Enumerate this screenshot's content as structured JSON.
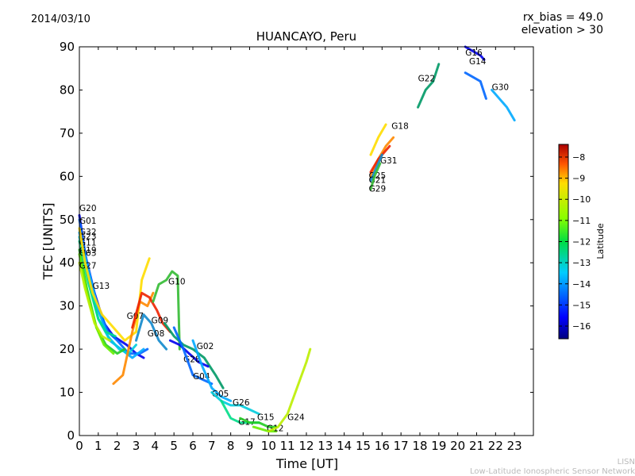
{
  "header": {
    "date": "2014/03/10",
    "rx_bias": "rx_bias = 49.0",
    "elevation": "elevation > 30"
  },
  "chart_data": {
    "type": "scatter",
    "title": "HUANCAYO, Peru",
    "xlabel": "Time [UT]",
    "ylabel": "TEC [UNITS]",
    "xlim": [
      0,
      24
    ],
    "ylim": [
      0,
      90
    ],
    "xticks": [
      "0",
      "1",
      "2",
      "3",
      "4",
      "5",
      "6",
      "7",
      "8",
      "9",
      "10",
      "11",
      "12",
      "13",
      "14",
      "15",
      "16",
      "17",
      "18",
      "19",
      "20",
      "21",
      "22",
      "23"
    ],
    "yticks": [
      "0",
      "10",
      "20",
      "30",
      "40",
      "50",
      "60",
      "70",
      "80",
      "90"
    ],
    "colorbar": {
      "label": "Latitude",
      "range": [
        -16.6,
        -7.4
      ],
      "ticks": [
        "−8",
        "−9",
        "−10",
        "−11",
        "−12",
        "−13",
        "−14",
        "−15",
        "−16"
      ]
    },
    "series": [
      {
        "name": "G20",
        "label_at": [
          0.0,
          52
        ],
        "points": [
          [
            0,
            51
          ],
          [
            0.3,
            42
          ],
          [
            0.8,
            33
          ],
          [
            1.3,
            26
          ],
          [
            1.8,
            23
          ],
          [
            2.5,
            21
          ],
          [
            3.0,
            19
          ],
          [
            3.4,
            18
          ]
        ]
      },
      {
        "name": "G01",
        "label_at": [
          0.0,
          49
        ],
        "points": [
          [
            0,
            50
          ],
          [
            0.4,
            40
          ],
          [
            0.9,
            31
          ],
          [
            1.5,
            24
          ],
          [
            2.0,
            22
          ],
          [
            2.6,
            19
          ],
          [
            3.2,
            19
          ],
          [
            3.6,
            20
          ]
        ]
      },
      {
        "name": "G32",
        "label_at": [
          0.0,
          46.5
        ],
        "points": [
          [
            0,
            47
          ],
          [
            0.5,
            38
          ],
          [
            1.0,
            29
          ],
          [
            1.6,
            22
          ],
          [
            2.2,
            20
          ],
          [
            2.8,
            18
          ],
          [
            3.4,
            20
          ]
        ]
      },
      {
        "name": "G23",
        "label_at": [
          0.0,
          45.5
        ],
        "points": [
          [
            0,
            46
          ],
          [
            0.5,
            36
          ],
          [
            1.0,
            27
          ],
          [
            1.5,
            23
          ],
          [
            2.1,
            20
          ],
          [
            2.6,
            19
          ],
          [
            3.0,
            21
          ]
        ]
      },
      {
        "name": "G11",
        "label_at": [
          0.0,
          44
        ],
        "points": [
          [
            0,
            45
          ],
          [
            0.5,
            35
          ],
          [
            1.0,
            27
          ],
          [
            1.4,
            24
          ],
          [
            1.9,
            23
          ]
        ]
      },
      {
        "name": "G19",
        "label_at": [
          0.0,
          42.2
        ],
        "points": [
          [
            0,
            43
          ],
          [
            0.4,
            34
          ],
          [
            0.9,
            25
          ],
          [
            1.4,
            21
          ],
          [
            2.0,
            19
          ],
          [
            2.4,
            20
          ]
        ]
      },
      {
        "name": "G03",
        "label_at": [
          0.0,
          41.6
        ],
        "points": [
          [
            0,
            42
          ],
          [
            0.4,
            33
          ],
          [
            0.9,
            25
          ],
          [
            1.3,
            21
          ],
          [
            1.8,
            19
          ]
        ]
      },
      {
        "name": "G27",
        "label_at": [
          0.0,
          38.7
        ],
        "points": [
          [
            0,
            40
          ],
          [
            0.3,
            34
          ],
          [
            0.8,
            26
          ],
          [
            1.2,
            23
          ],
          [
            1.6,
            22
          ]
        ]
      },
      {
        "name": "G13",
        "label_at": [
          0.7,
          34
        ],
        "points": [
          [
            0,
            48
          ],
          [
            0.3,
            40
          ],
          [
            0.7,
            33
          ],
          [
            1.2,
            28
          ],
          [
            1.8,
            25
          ],
          [
            2.4,
            22
          ],
          [
            3.0,
            24
          ],
          [
            3.3,
            36
          ],
          [
            3.7,
            41
          ]
        ]
      },
      {
        "name": "G07",
        "label_at": [
          2.5,
          27
        ],
        "points": [
          [
            1.8,
            12
          ],
          [
            2.3,
            14
          ],
          [
            2.8,
            24
          ],
          [
            3.2,
            31
          ],
          [
            3.6,
            30
          ],
          [
            3.9,
            33
          ]
        ]
      },
      {
        "name": "G09",
        "label_at": [
          3.8,
          26
        ],
        "points": [
          [
            2.8,
            25
          ],
          [
            3.3,
            33
          ],
          [
            3.7,
            32
          ],
          [
            4.1,
            29
          ],
          [
            4.4,
            26
          ],
          [
            4.8,
            24
          ]
        ]
      },
      {
        "name": "G08",
        "label_at": [
          3.6,
          23
        ],
        "points": [
          [
            3.0,
            22
          ],
          [
            3.4,
            28
          ],
          [
            3.8,
            26
          ],
          [
            4.2,
            22
          ],
          [
            4.6,
            20
          ]
        ]
      },
      {
        "name": "G10",
        "label_at": [
          4.7,
          35
        ],
        "points": [
          [
            3.9,
            31
          ],
          [
            4.2,
            35
          ],
          [
            4.6,
            36
          ],
          [
            4.9,
            38
          ],
          [
            5.2,
            37
          ],
          [
            5.3,
            20
          ]
        ]
      },
      {
        "name": "G02",
        "label_at": [
          6.2,
          20
        ],
        "points": [
          [
            4.5,
            26
          ],
          [
            5.0,
            23
          ],
          [
            5.5,
            21
          ],
          [
            6.0,
            20
          ],
          [
            6.6,
            18
          ],
          [
            7.2,
            14
          ],
          [
            7.6,
            11
          ]
        ]
      },
      {
        "name": "G28",
        "label_at": [
          5.5,
          17
        ],
        "points": [
          [
            4.8,
            22
          ],
          [
            5.3,
            21
          ],
          [
            5.8,
            19
          ],
          [
            6.3,
            17
          ],
          [
            6.8,
            16
          ]
        ]
      },
      {
        "name": "G04",
        "label_at": [
          6.0,
          13
        ],
        "points": [
          [
            5.0,
            25
          ],
          [
            5.5,
            20
          ],
          [
            6.0,
            14
          ],
          [
            6.5,
            13
          ],
          [
            7.0,
            12
          ]
        ]
      },
      {
        "name": "G05",
        "label_at": [
          7.0,
          9
        ],
        "points": [
          [
            6.0,
            22
          ],
          [
            6.5,
            16
          ],
          [
            7.0,
            11
          ],
          [
            7.5,
            9
          ],
          [
            8.0,
            8
          ]
        ]
      },
      {
        "name": "G26",
        "label_at": [
          8.1,
          7
        ],
        "points": [
          [
            7.0,
            10
          ],
          [
            7.5,
            8
          ],
          [
            8.0,
            7
          ],
          [
            8.5,
            7
          ],
          [
            9.0,
            6
          ],
          [
            9.5,
            5
          ]
        ]
      },
      {
        "name": "G17",
        "label_at": [
          8.4,
          2.5
        ],
        "points": [
          [
            7.5,
            8
          ],
          [
            8.0,
            4
          ],
          [
            8.5,
            3
          ],
          [
            9.0,
            3
          ],
          [
            9.5,
            3
          ]
        ]
      },
      {
        "name": "G15",
        "label_at": [
          9.4,
          3.6
        ],
        "points": [
          [
            8.5,
            4
          ],
          [
            9.0,
            3
          ],
          [
            9.5,
            3
          ],
          [
            10.0,
            2
          ],
          [
            10.4,
            2
          ]
        ]
      },
      {
        "name": "G12",
        "label_at": [
          9.9,
          1
        ],
        "points": [
          [
            9.2,
            2
          ],
          [
            9.6,
            1.5
          ],
          [
            10.0,
            1
          ],
          [
            10.4,
            1
          ]
        ]
      },
      {
        "name": "G24",
        "label_at": [
          11.0,
          3.6
        ],
        "points": [
          [
            10.0,
            1
          ],
          [
            10.5,
            2
          ],
          [
            11.0,
            5
          ],
          [
            11.5,
            11
          ],
          [
            12.0,
            17
          ],
          [
            12.2,
            20
          ]
        ]
      },
      {
        "name": "G18",
        "label_at": [
          16.5,
          71
        ],
        "points": [
          [
            15.4,
            65
          ],
          [
            15.8,
            69
          ],
          [
            16.2,
            72
          ]
        ]
      },
      {
        "name": "G31",
        "label_at": [
          15.9,
          63
        ],
        "points": [
          [
            15.4,
            60
          ],
          [
            15.8,
            64
          ],
          [
            16.2,
            67
          ],
          [
            16.6,
            69
          ]
        ]
      },
      {
        "name": "G25",
        "label_at": [
          15.3,
          59.5
        ],
        "points": [
          [
            15.4,
            61
          ],
          [
            15.8,
            64
          ],
          [
            16.2,
            66
          ],
          [
            16.4,
            67
          ]
        ]
      },
      {
        "name": "G21",
        "label_at": [
          15.3,
          58.5
        ],
        "points": [
          [
            15.4,
            59
          ],
          [
            15.7,
            62
          ],
          [
            16.0,
            65
          ]
        ]
      },
      {
        "name": "G29",
        "label_at": [
          15.3,
          56.5
        ],
        "points": [
          [
            15.4,
            57
          ],
          [
            15.6,
            60
          ],
          [
            15.9,
            63
          ]
        ]
      },
      {
        "name": "G22",
        "label_at": [
          17.9,
          82
        ],
        "points": [
          [
            17.9,
            76
          ],
          [
            18.3,
            80
          ],
          [
            18.7,
            82
          ],
          [
            19.0,
            86
          ]
        ]
      },
      {
        "name": "G16",
        "label_at": [
          20.4,
          88
        ],
        "points": [
          [
            20.4,
            90
          ],
          [
            20.8,
            89
          ],
          [
            21.2,
            88
          ],
          [
            21.4,
            87
          ]
        ]
      },
      {
        "name": "G14",
        "label_at": [
          20.6,
          86
        ],
        "points": [
          [
            20.4,
            84
          ],
          [
            20.8,
            83
          ],
          [
            21.2,
            82
          ],
          [
            21.5,
            78
          ]
        ]
      },
      {
        "name": "G30",
        "label_at": [
          21.8,
          80
        ],
        "points": [
          [
            21.8,
            80
          ],
          [
            22.2,
            78
          ],
          [
            22.6,
            76
          ],
          [
            23.0,
            73
          ]
        ]
      }
    ]
  },
  "footer": {
    "lisn": "LISN",
    "network": "Low-Latitude Ionospheric Sensor Network"
  }
}
